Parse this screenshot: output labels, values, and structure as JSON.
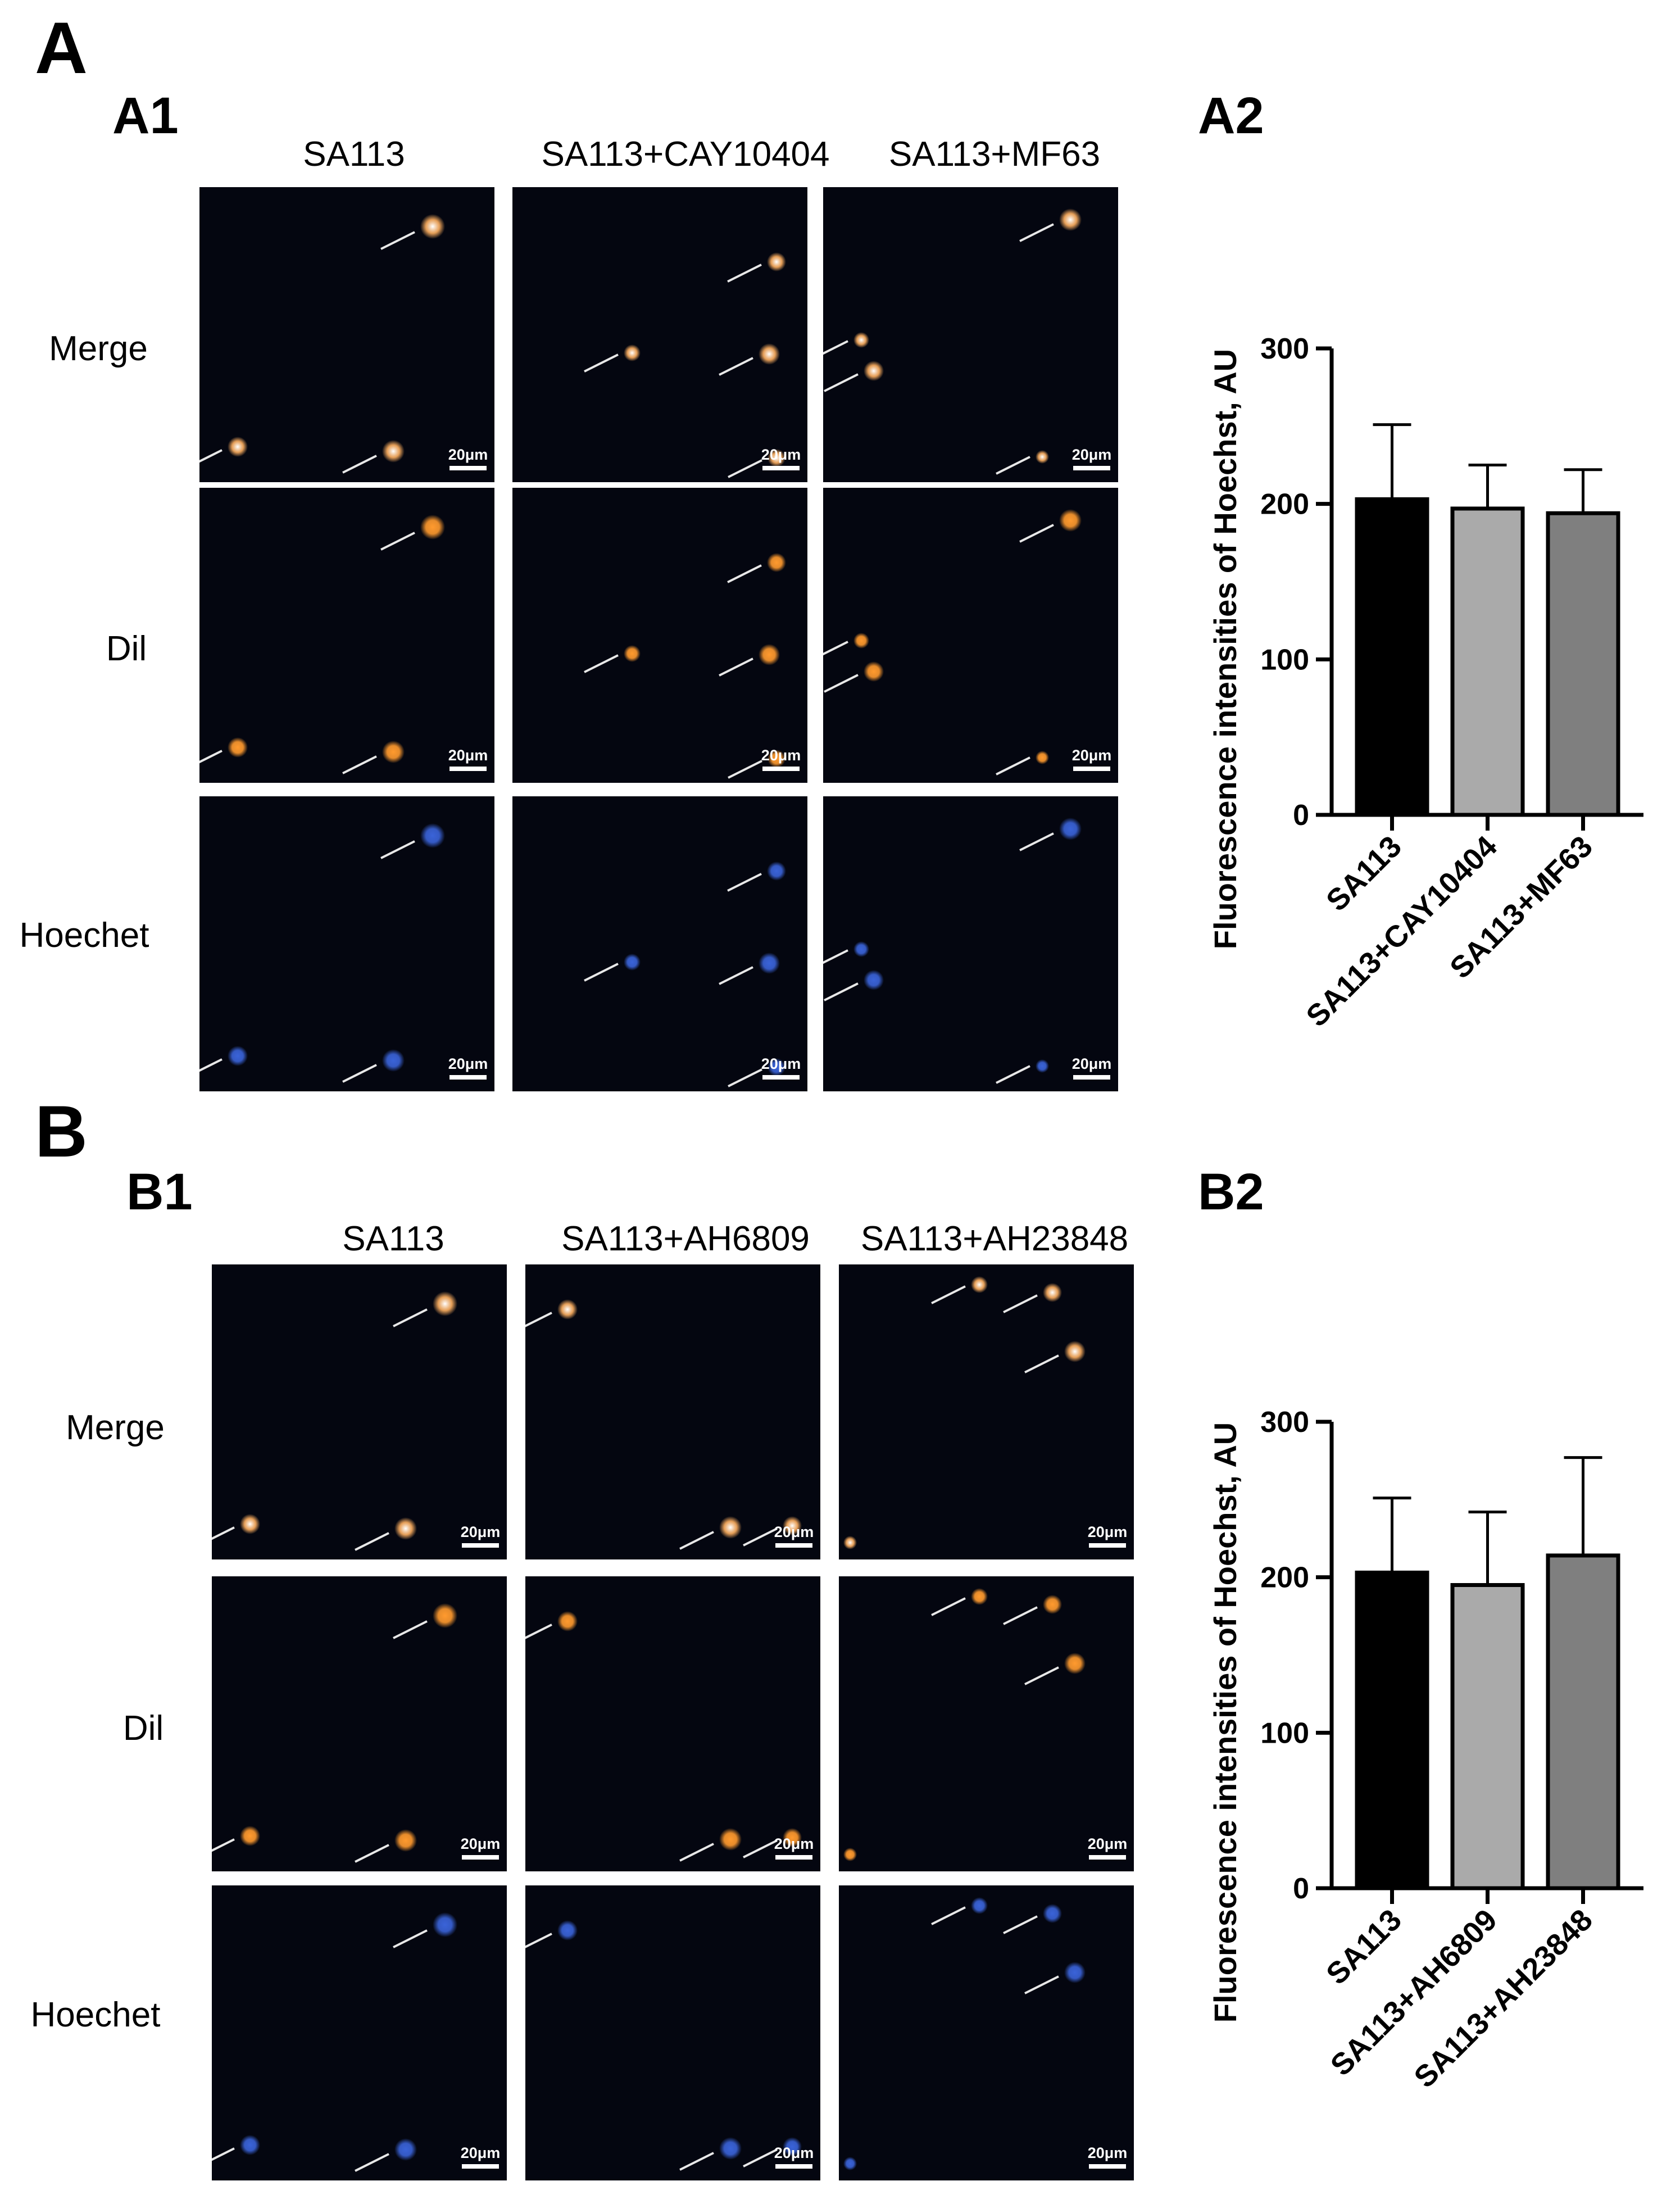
{
  "figure": {
    "sections": [
      {
        "letter": "A",
        "image_panel_label": "A1",
        "chart_panel_label": "A2",
        "columns": [
          "SA113",
          "SA113+CAY10404",
          "SA113+MF63"
        ],
        "rows": [
          "Merge",
          "Dil",
          "Hoechet"
        ],
        "scale_bar": "20μm"
      },
      {
        "letter": "B",
        "image_panel_label": "B1",
        "chart_panel_label": "B2",
        "columns": [
          "SA113",
          "SA113+AH6809",
          "SA113+AH23848"
        ],
        "rows": [
          "Merge",
          "Dil",
          "Hoechet"
        ],
        "scale_bar": "20μm"
      }
    ],
    "colors": {
      "dil_stain": "#ff9a2e",
      "hoechst_stain": "#3a63d8",
      "merge_stain": "#ffb060",
      "background": "#040610"
    }
  },
  "chart_data": [
    {
      "type": "bar",
      "ylabel": "Fluorescence intensities of Hoechst, AU",
      "categories": [
        "SA113",
        "SA113+CAY10404",
        "SA113+MF63"
      ],
      "values": [
        203,
        197,
        194
      ],
      "errors": [
        48,
        28,
        28
      ],
      "ylim": [
        0,
        300
      ],
      "yticks": [
        "0",
        "100",
        "200",
        "300"
      ],
      "bar_colors": [
        "#000000",
        "#aaaaaa",
        "#7f7f7f"
      ]
    },
    {
      "type": "bar",
      "ylabel": "Fluorescence intensities of Hoechst, AU",
      "categories": [
        "SA113",
        "SA113+AH6809",
        "SA113+AH23848"
      ],
      "values": [
        203,
        195,
        214
      ],
      "errors": [
        48,
        47,
        63
      ],
      "ylim": [
        0,
        300
      ],
      "yticks": [
        "0",
        "100",
        "200",
        "300"
      ],
      "bar_colors": [
        "#000000",
        "#aaaaaa",
        "#7f7f7f"
      ]
    }
  ]
}
